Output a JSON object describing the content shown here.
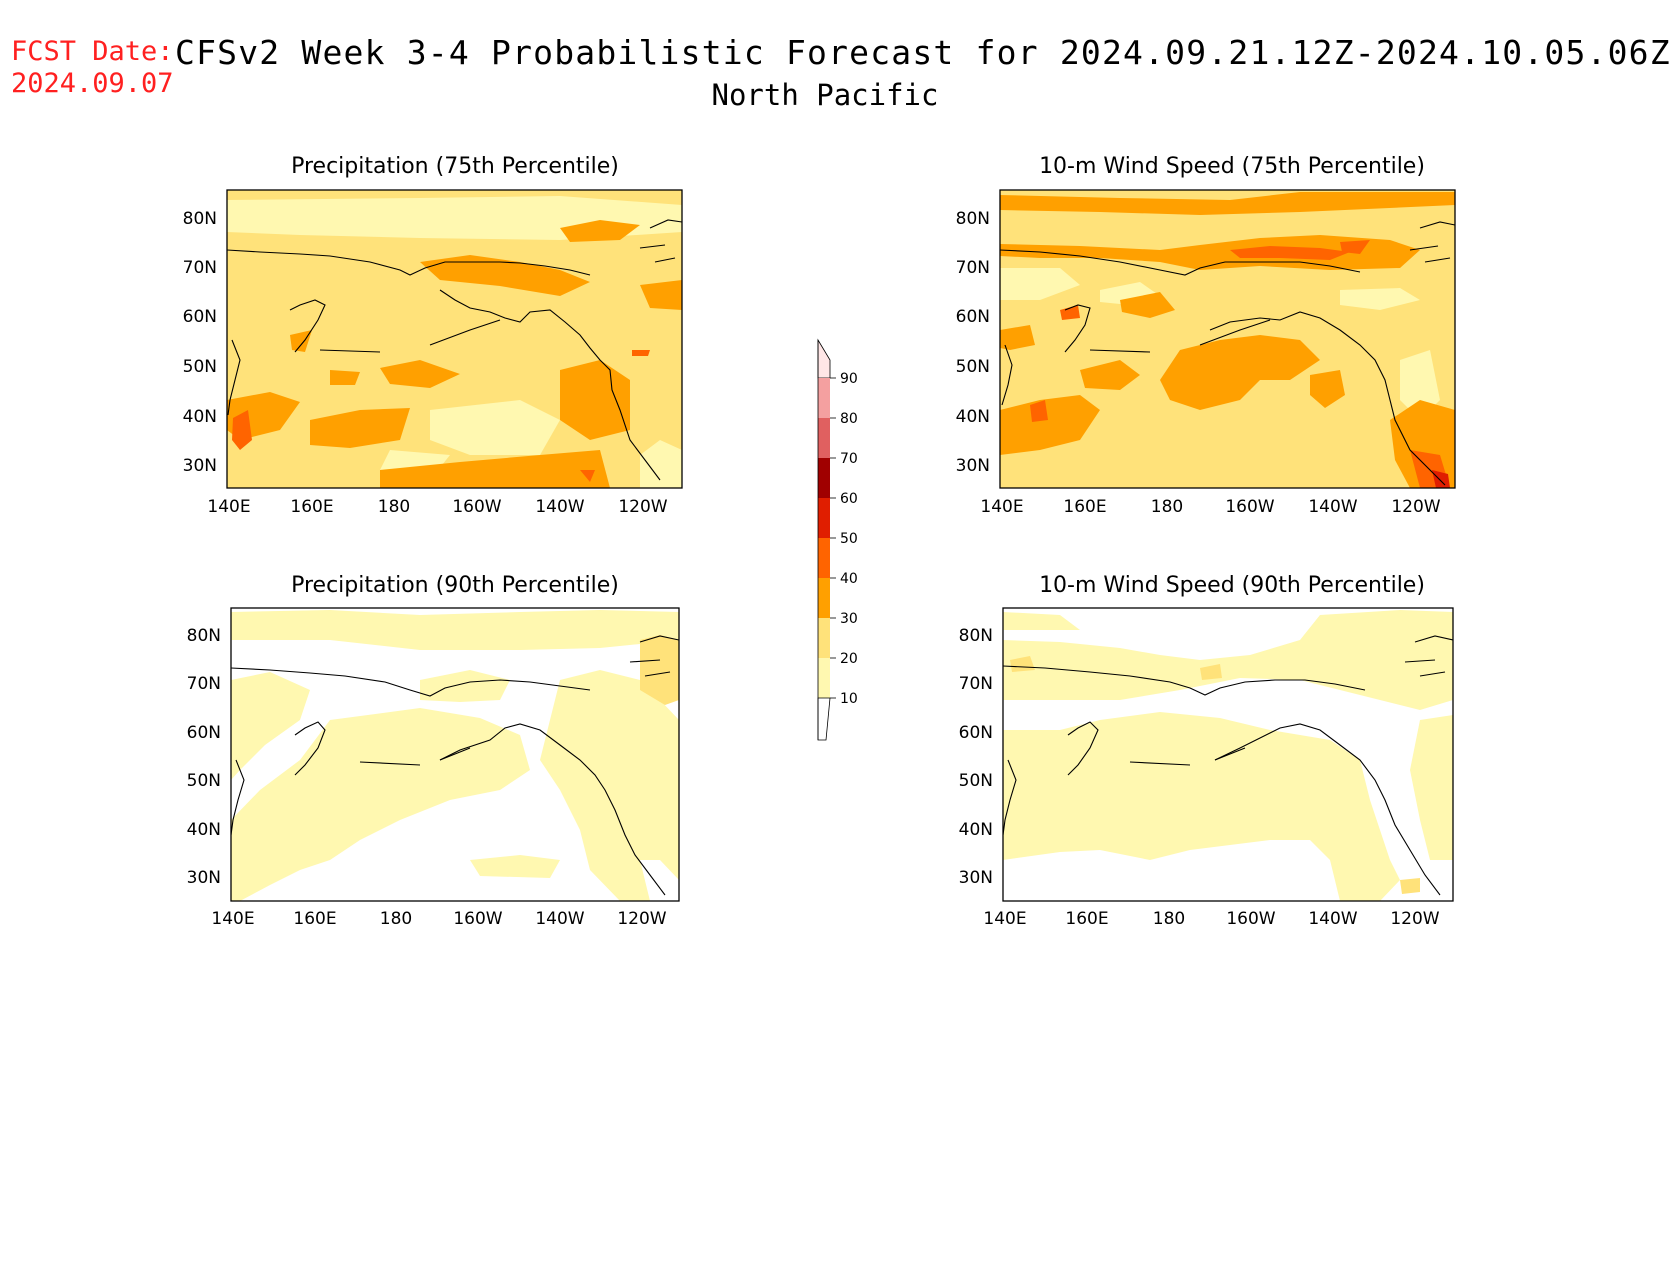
{
  "header": {
    "fcst_label": "FCST Date:",
    "fcst_date": "2024.09.07",
    "title": "CFSv2 Week 3-4 Probabilistic Forecast for 2024.09.21.12Z-2024.10.05.06Z",
    "region": "North Pacific"
  },
  "colors": {
    "c10": "#fff8b0",
    "c20": "#ffe27a",
    "c30": "#ffa000",
    "c40": "#ff6400",
    "c50": "#e01e00",
    "c60": "#a00000",
    "c70": "#e06060",
    "c80": "#f4a0a0",
    "c90": "#ffe6e6",
    "coast": "#000000"
  },
  "panels": [
    {
      "title": "Precipitation (75th Percentile)"
    },
    {
      "title": "10-m Wind Speed (75th Percentile)"
    },
    {
      "title": "Precipitation (90th Percentile)"
    },
    {
      "title": "10-m Wind Speed (90th Percentile)"
    }
  ],
  "axes": {
    "lon_labels": [
      "140E",
      "160E",
      "180",
      "160W",
      "140W",
      "120W"
    ],
    "lat_labels": [
      "80N",
      "70N",
      "60N",
      "50N",
      "40N",
      "30N"
    ]
  },
  "colorbar": {
    "levels": [
      "10",
      "20",
      "30",
      "40",
      "50",
      "60",
      "70",
      "80",
      "90"
    ]
  }
}
